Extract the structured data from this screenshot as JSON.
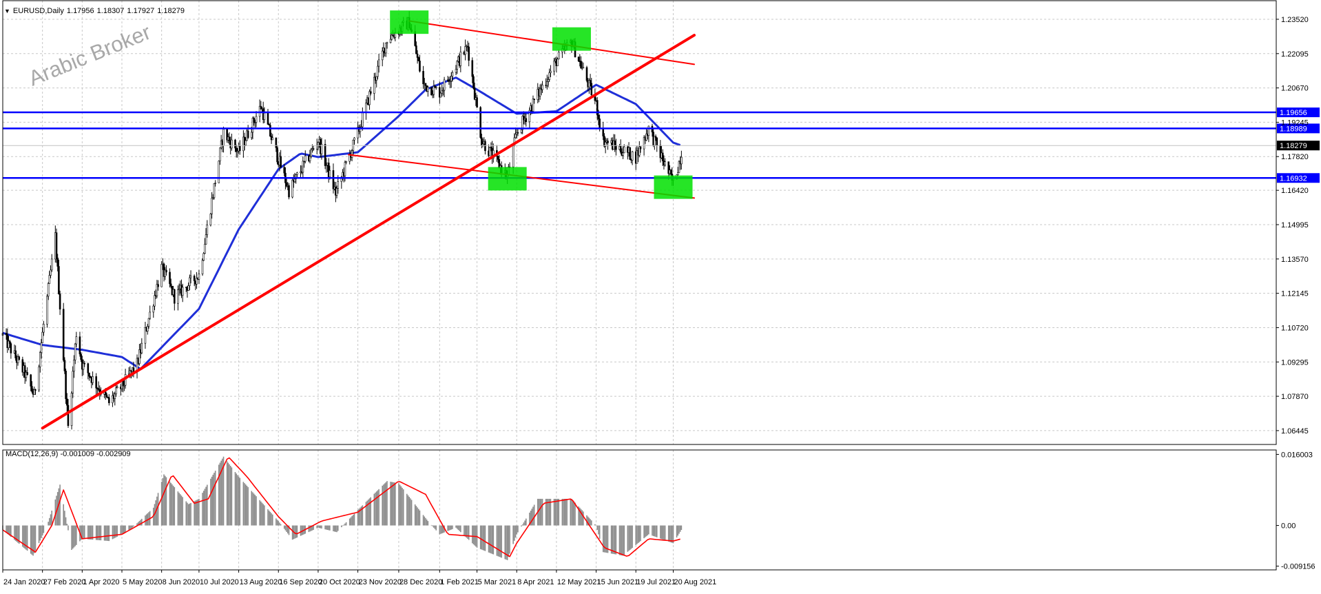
{
  "header": {
    "symbol": "EURUSD,Daily",
    "open": "1.17956",
    "high": "1.18307",
    "low": "1.17927",
    "close": "1.18279"
  },
  "watermark": "Arabic Broker",
  "macd_label": {
    "name": "MACD(12,26,9)",
    "main": "-0.001009",
    "signal": "-0.002909"
  },
  "colors": {
    "support_resistance": "#0000ff",
    "moving_average": "#1f2fd8",
    "trendline": "#ff0000",
    "highlight": "#00e000",
    "candle": "#000000",
    "macd_hist": "#8c8c8c",
    "macd_signal": "#ff0000",
    "current_price_label": "#000000"
  },
  "chart_data": [
    {
      "type": "candlestick",
      "title": "EURUSD,Daily",
      "y_ticks": [
        "1.23520",
        "1.22095",
        "1.20670",
        "1.19245",
        "1.17820",
        "1.16420",
        "1.14995",
        "1.13570",
        "1.12145",
        "1.10720",
        "1.09295",
        "1.07870",
        "1.06445"
      ],
      "ylim": [
        1.0587,
        1.2432
      ],
      "x_ticks": [
        "24 Jan 2020",
        "27 Feb 2020",
        "1 Apr 2020",
        "5 May 2020",
        "8 Jun 2020",
        "10 Jul 2020",
        "13 Aug 2020",
        "16 Sep 2020",
        "20 Oct 2020",
        "23 Nov 2020",
        "28 Dec 2020",
        "1 Feb 2021",
        "5 Mar 2021",
        "8 Apr 2021",
        "12 May 2021",
        "15 Jun 2021",
        "19 Jul 2021",
        "20 Aug 2021"
      ],
      "price_path": [
        {
          "date": "24 Jan 2020",
          "price": 1.104
        },
        {
          "date": "12 Feb 2020",
          "price": 1.088
        },
        {
          "date": "20 Feb 2020",
          "price": 1.079
        },
        {
          "date": "9 Mar 2020",
          "price": 1.145
        },
        {
          "date": "20 Mar 2020",
          "price": 1.066
        },
        {
          "date": "27 Mar 2020",
          "price": 1.105
        },
        {
          "date": "1 Apr 2020",
          "price": 1.092
        },
        {
          "date": "24 Apr 2020",
          "price": 1.076
        },
        {
          "date": "5 May 2020",
          "price": 1.083
        },
        {
          "date": "18 May 2020",
          "price": 1.092
        },
        {
          "date": "8 Jun 2020",
          "price": 1.132
        },
        {
          "date": "19 Jun 2020",
          "price": 1.12
        },
        {
          "date": "10 Jul 2020",
          "price": 1.129
        },
        {
          "date": "31 Jul 2020",
          "price": 1.188
        },
        {
          "date": "13 Aug 2020",
          "price": 1.18
        },
        {
          "date": "1 Sep 2020",
          "price": 1.199
        },
        {
          "date": "25 Sep 2020",
          "price": 1.164
        },
        {
          "date": "20 Oct 2020",
          "price": 1.185
        },
        {
          "date": "4 Nov 2020",
          "price": 1.163
        },
        {
          "date": "23 Nov 2020",
          "price": 1.188
        },
        {
          "date": "18 Dec 2020",
          "price": 1.227
        },
        {
          "date": "6 Jan 2021",
          "price": 1.234
        },
        {
          "date": "18 Jan 2021",
          "price": 1.208
        },
        {
          "date": "1 Feb 2021",
          "price": 1.205
        },
        {
          "date": "25 Feb 2021",
          "price": 1.224
        },
        {
          "date": "9 Mar 2021",
          "price": 1.185
        },
        {
          "date": "31 Mar 2021",
          "price": 1.17
        },
        {
          "date": "8 Apr 2021",
          "price": 1.188
        },
        {
          "date": "12 May 2021",
          "price": 1.218
        },
        {
          "date": "25 May 2021",
          "price": 1.226
        },
        {
          "date": "15 Jun 2021",
          "price": 1.2
        },
        {
          "date": "21 Jun 2021",
          "price": 1.185
        },
        {
          "date": "19 Jul 2021",
          "price": 1.178
        },
        {
          "date": "30 Jul 2021",
          "price": 1.19
        },
        {
          "date": "20 Aug 2021",
          "price": 1.167
        },
        {
          "date": "27 Aug 2021",
          "price": 1.1795
        }
      ],
      "moving_average_path": [
        {
          "date": "24 Jan 2020",
          "price": 1.105
        },
        {
          "date": "27 Feb 2020",
          "price": 1.1
        },
        {
          "date": "1 Apr 2020",
          "price": 1.098
        },
        {
          "date": "5 May 2020",
          "price": 1.095
        },
        {
          "date": "21 May 2020",
          "price": 1.09
        },
        {
          "date": "8 Jun 2020",
          "price": 1.099
        },
        {
          "date": "10 Jul 2020",
          "price": 1.115
        },
        {
          "date": "13 Aug 2020",
          "price": 1.148
        },
        {
          "date": "16 Sep 2020",
          "price": 1.173
        },
        {
          "date": "5 Oct 2020",
          "price": 1.1795
        },
        {
          "date": "20 Oct 2020",
          "price": 1.178
        },
        {
          "date": "23 Nov 2020",
          "price": 1.18
        },
        {
          "date": "28 Dec 2020",
          "price": 1.195
        },
        {
          "date": "20 Jan 2021",
          "price": 1.206
        },
        {
          "date": "15 Feb 2021",
          "price": 1.211
        },
        {
          "date": "5 Mar 2021",
          "price": 1.206
        },
        {
          "date": "8 Apr 2021",
          "price": 1.196
        },
        {
          "date": "12 May 2021",
          "price": 1.197
        },
        {
          "date": "15 Jun 2021",
          "price": 1.208
        },
        {
          "date": "19 Jul 2021",
          "price": 1.2
        },
        {
          "date": "20 Aug 2021",
          "price": 1.184
        },
        {
          "date": "27 Aug 2021",
          "price": 1.1828
        }
      ],
      "horizontal_levels": [
        {
          "label": "1.19656",
          "price": 1.19656
        },
        {
          "label": "1.18989",
          "price": 1.18989
        },
        {
          "label": "1.16932",
          "price": 1.16932
        }
      ],
      "current_price": "1.18279",
      "trendlines": [
        {
          "name": "rising-support",
          "from": {
            "date": "27 Feb 2020",
            "price": 1.0655
          },
          "to": {
            "date": "7 Sep 2021",
            "price": 1.2286
          }
        },
        {
          "name": "channel-top",
          "from": {
            "date": "6 Jan 2021",
            "price": 1.2345
          },
          "to": {
            "date": "7 Sep 2021",
            "price": 1.2165
          }
        },
        {
          "name": "channel-bottom",
          "from": {
            "date": "15 Nov 2020",
            "price": 1.179
          },
          "to": {
            "date": "7 Sep 2021",
            "price": 1.161
          }
        }
      ],
      "highlight_boxes": [
        {
          "label": "top-1",
          "date": "6 Jan 2021",
          "price": 1.234
        },
        {
          "label": "top-2",
          "date": "25 May 2021",
          "price": 1.227
        },
        {
          "label": "bottom-1",
          "date": "31 Mar 2021",
          "price": 1.169
        },
        {
          "label": "bottom-2",
          "date": "20 Aug 2021",
          "price": 1.1655
        }
      ]
    },
    {
      "type": "bar",
      "title": "MACD(12,26,9)",
      "y_ticks": [
        "0.016003",
        "0.00",
        "-0.009156"
      ],
      "ylim": [
        -0.01,
        0.017
      ],
      "histogram_path": [
        {
          "date": "24 Jan 2020",
          "value": -0.001
        },
        {
          "date": "19 Feb 2020",
          "value": -0.0068
        },
        {
          "date": "2 Mar 2020",
          "value": 0.0
        },
        {
          "date": "13 Mar 2020",
          "value": 0.0092
        },
        {
          "date": "23 Mar 2020",
          "value": -0.0055
        },
        {
          "date": "1 Apr 2020",
          "value": -0.003
        },
        {
          "date": "24 Apr 2020",
          "value": -0.0035
        },
        {
          "date": "12 May 2020",
          "value": -0.001
        },
        {
          "date": "1 Jun 2020",
          "value": 0.004
        },
        {
          "date": "10 Jun 2020",
          "value": 0.0115
        },
        {
          "date": "1 Jul 2020",
          "value": 0.0048
        },
        {
          "date": "10 Jul 2020",
          "value": 0.006
        },
        {
          "date": "31 Jul 2020",
          "value": 0.0155
        },
        {
          "date": "13 Aug 2020",
          "value": 0.011
        },
        {
          "date": "16 Sep 2020",
          "value": 0.001
        },
        {
          "date": "28 Sep 2020",
          "value": -0.0032
        },
        {
          "date": "20 Oct 2020",
          "value": -0.0005
        },
        {
          "date": "5 Nov 2020",
          "value": -0.0015
        },
        {
          "date": "23 Nov 2020",
          "value": 0.0035
        },
        {
          "date": "18 Dec 2020",
          "value": 0.01
        },
        {
          "date": "28 Dec 2020",
          "value": 0.0095
        },
        {
          "date": "22 Jan 2021",
          "value": 0.001
        },
        {
          "date": "1 Feb 2021",
          "value": -0.002
        },
        {
          "date": "15 Feb 2021",
          "value": -0.0005
        },
        {
          "date": "5 Mar 2021",
          "value": -0.005
        },
        {
          "date": "31 Mar 2021",
          "value": -0.0078
        },
        {
          "date": "8 Apr 2021",
          "value": -0.002
        },
        {
          "date": "26 Apr 2021",
          "value": 0.006
        },
        {
          "date": "25 May 2021",
          "value": 0.006
        },
        {
          "date": "15 Jun 2021",
          "value": 0.0
        },
        {
          "date": "21 Jun 2021",
          "value": -0.006
        },
        {
          "date": "8 Jul 2021",
          "value": -0.0068
        },
        {
          "date": "30 Jul 2021",
          "value": -0.002
        },
        {
          "date": "20 Aug 2021",
          "value": -0.004
        },
        {
          "date": "27 Aug 2021",
          "value": -0.001
        }
      ],
      "signal_path": [
        {
          "date": "24 Jan 2020",
          "value": -0.001
        },
        {
          "date": "21 Feb 2020",
          "value": -0.006
        },
        {
          "date": "6 Mar 2020",
          "value": 0.0
        },
        {
          "date": "16 Mar 2020",
          "value": 0.008
        },
        {
          "date": "1 Apr 2020",
          "value": -0.003
        },
        {
          "date": "5 May 2020",
          "value": -0.002
        },
        {
          "date": "1 Jun 2020",
          "value": 0.002
        },
        {
          "date": "17 Jun 2020",
          "value": 0.0115
        },
        {
          "date": "6 Jul 2020",
          "value": 0.005
        },
        {
          "date": "18 Jul 2020",
          "value": 0.006
        },
        {
          "date": "4 Aug 2020",
          "value": 0.0155
        },
        {
          "date": "20 Aug 2020",
          "value": 0.011
        },
        {
          "date": "16 Sep 2020",
          "value": 0.002
        },
        {
          "date": "1 Oct 2020",
          "value": -0.002
        },
        {
          "date": "23 Oct 2020",
          "value": 0.001
        },
        {
          "date": "23 Nov 2020",
          "value": 0.003
        },
        {
          "date": "28 Dec 2020",
          "value": 0.01
        },
        {
          "date": "20 Jan 2021",
          "value": 0.007
        },
        {
          "date": "8 Feb 2021",
          "value": -0.002
        },
        {
          "date": "5 Mar 2021",
          "value": -0.0025
        },
        {
          "date": "2 Apr 2021",
          "value": -0.007
        },
        {
          "date": "8 Apr 2021",
          "value": -0.004
        },
        {
          "date": "1 May 2021",
          "value": 0.005
        },
        {
          "date": "25 May 2021",
          "value": 0.006
        },
        {
          "date": "22 Jun 2021",
          "value": -0.005
        },
        {
          "date": "12 Jul 2021",
          "value": -0.007
        },
        {
          "date": "30 Jul 2021",
          "value": -0.003
        },
        {
          "date": "20 Aug 2021",
          "value": -0.0035
        },
        {
          "date": "27 Aug 2021",
          "value": -0.003
        }
      ]
    }
  ]
}
